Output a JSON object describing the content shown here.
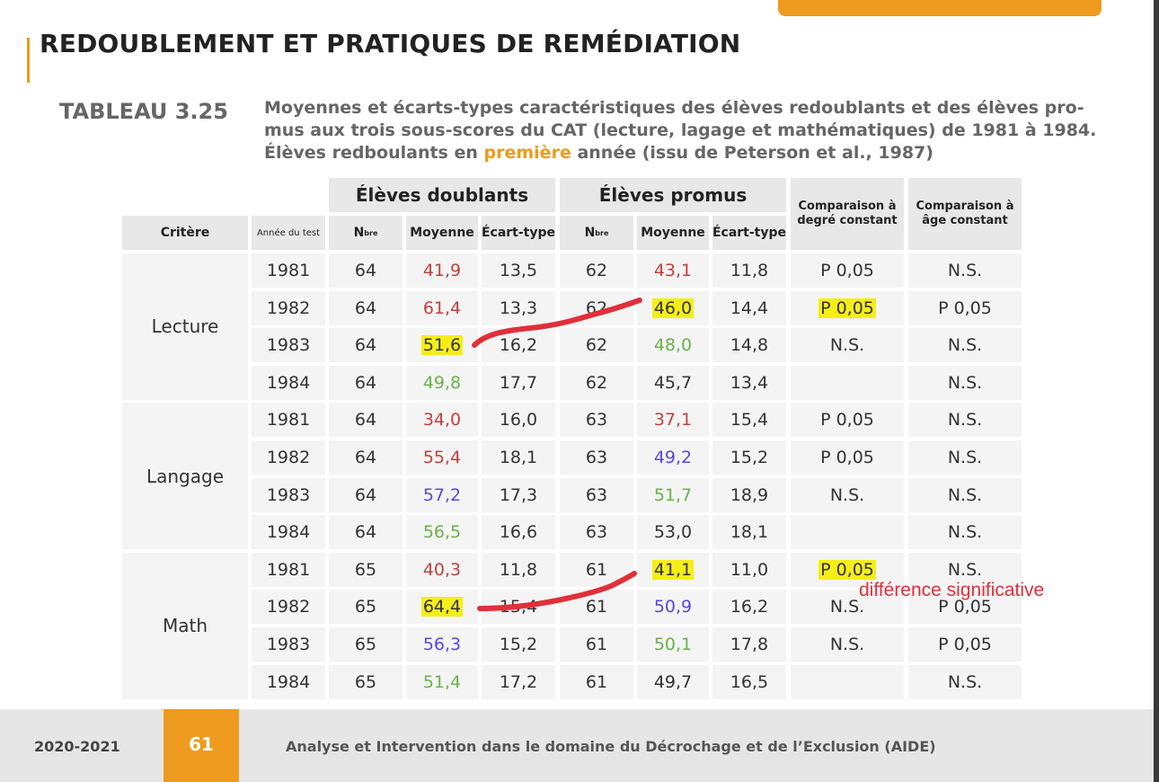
{
  "page": {
    "title": "REDOUBLEMENT ET PRATIQUES DE REMÉDIATION",
    "table_number": "TABLEAU 3.25",
    "caption_before": "Moyennes et écarts-types caractéristiques des élèves redoublants et des élèves pro-mus aux trois sous-scores du CAT (lecture, lagage et mathématiques) de 1981 à 1984. Élèves redboulants en ",
    "caption_highlight": "première",
    "caption_after": " année (issu de Peterson et al., 1987)"
  },
  "table": {
    "group_doublants": "Élèves doublants",
    "group_promus": "Élèves promus",
    "col_critere": "Critère",
    "col_annee": "Année du test",
    "col_n": "N",
    "col_n_sup": "bre",
    "col_moyenne": "Moyenne",
    "col_ecart": "Écart-type",
    "col_cmp_degre": "Comparaison à degré constant",
    "col_cmp_age": "Comparaison à âge constant",
    "sections": [
      {
        "label": "Lecture",
        "rows": [
          {
            "year": "1981",
            "n1": "64",
            "m1": "41,9",
            "m1c": "red",
            "s1": "13,5",
            "n2": "62",
            "m2": "43,1",
            "m2c": "red",
            "s2": "11,8",
            "c1": "P 0,05",
            "c2": "N.S."
          },
          {
            "year": "1982",
            "n1": "64",
            "m1": "61,4",
            "m1c": "red",
            "s1": "13,3",
            "n2": "62",
            "m2": "46,0",
            "m2c": "",
            "m2h": true,
            "s2": "14,4",
            "c1": "P 0,05",
            "c1h": true,
            "c2": "P 0,05"
          },
          {
            "year": "1983",
            "n1": "64",
            "m1": "51,6",
            "m1c": "",
            "m1h": true,
            "s1": "16,2",
            "n2": "62",
            "m2": "48,0",
            "m2c": "green",
            "s2": "14,8",
            "c1": "N.S.",
            "c2": "N.S."
          },
          {
            "year": "1984",
            "n1": "64",
            "m1": "49,8",
            "m1c": "green",
            "s1": "17,7",
            "n2": "62",
            "m2": "45,7",
            "m2c": "",
            "s2": "13,4",
            "c1": "",
            "c2": "N.S."
          }
        ]
      },
      {
        "label": "Langage",
        "rows": [
          {
            "year": "1981",
            "n1": "64",
            "m1": "34,0",
            "m1c": "red",
            "s1": "16,0",
            "n2": "63",
            "m2": "37,1",
            "m2c": "red",
            "s2": "15,4",
            "c1": "P 0,05",
            "c2": "N.S."
          },
          {
            "year": "1982",
            "n1": "64",
            "m1": "55,4",
            "m1c": "red",
            "s1": "18,1",
            "n2": "63",
            "m2": "49,2",
            "m2c": "blue",
            "s2": "15,2",
            "c1": "P 0,05",
            "c2": "N.S."
          },
          {
            "year": "1983",
            "n1": "64",
            "m1": "57,2",
            "m1c": "blue",
            "s1": "17,3",
            "n2": "63",
            "m2": "51,7",
            "m2c": "green",
            "s2": "18,9",
            "c1": "N.S.",
            "c2": "N.S."
          },
          {
            "year": "1984",
            "n1": "64",
            "m1": "56,5",
            "m1c": "green",
            "s1": "16,6",
            "n2": "63",
            "m2": "53,0",
            "m2c": "",
            "s2": "18,1",
            "c1": "",
            "c2": "N.S."
          }
        ]
      },
      {
        "label": "Math",
        "rows": [
          {
            "year": "1981",
            "n1": "65",
            "m1": "40,3",
            "m1c": "red",
            "s1": "11,8",
            "n2": "61",
            "m2": "41,1",
            "m2c": "",
            "m2h": true,
            "s2": "11,0",
            "c1": "P 0,05",
            "c1h": true,
            "c2": "N.S."
          },
          {
            "year": "1982",
            "n1": "65",
            "m1": "64,4",
            "m1c": "",
            "m1h": true,
            "s1": "15,4",
            "n2": "61",
            "m2": "50,9",
            "m2c": "blue",
            "s2": "16,2",
            "c1": "N.S.",
            "c2": "P 0,05"
          },
          {
            "year": "1983",
            "n1": "65",
            "m1": "56,3",
            "m1c": "blue",
            "s1": "15,2",
            "n2": "61",
            "m2": "50,1",
            "m2c": "green",
            "s2": "17,8",
            "c1": "N.S.",
            "c2": "P 0,05"
          },
          {
            "year": "1984",
            "n1": "65",
            "m1": "51,4",
            "m1c": "green",
            "s1": "17,2",
            "n2": "61",
            "m2": "49,7",
            "m2c": "",
            "s2": "16,5",
            "c1": "",
            "c2": "N.S."
          }
        ]
      }
    ]
  },
  "annotation": {
    "text": "différence significative",
    "color": "#e0303a",
    "highlight_color": "#f5ee19"
  },
  "footer": {
    "year": "2020-2021",
    "page_number": "61",
    "title": "Analyse et Intervention dans le domaine du Décrochage et de l’Exclusion (AIDE)"
  },
  "colors": {
    "accent": "#ee9a1e",
    "cell_bg": "#f4f4f4",
    "header_bg": "#e8e8e8",
    "red": "#c2413c",
    "green": "#6ab24a",
    "blue": "#5b47e0"
  }
}
